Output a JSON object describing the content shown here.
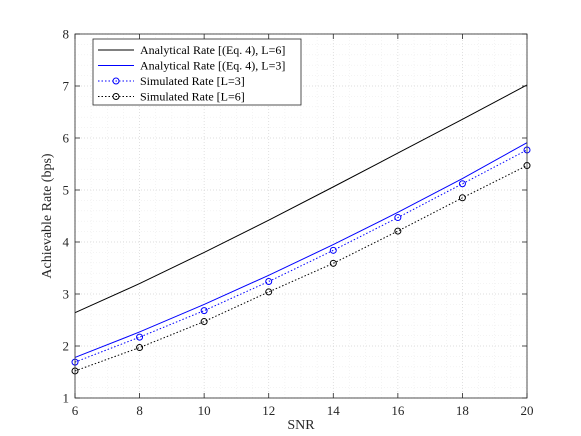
{
  "chart_data": {
    "type": "line",
    "xlabel": "SNR",
    "ylabel": "Achievable Rate (bps)",
    "xlim": [
      6,
      20
    ],
    "ylim": [
      1,
      8
    ],
    "xticks": [
      6,
      8,
      10,
      12,
      14,
      16,
      18,
      20
    ],
    "yticks": [
      1,
      2,
      3,
      4,
      5,
      6,
      7,
      8
    ],
    "grid": "major and minor, dotted",
    "legend_position": "top-left",
    "series": [
      {
        "name": "Analytical Rate [(Eq. 4), L=6]",
        "color": "#000000",
        "style": "solid",
        "marker": "none",
        "x": [
          6,
          8,
          10,
          12,
          14,
          16,
          18,
          20
        ],
        "y": [
          2.64,
          3.2,
          3.8,
          4.42,
          5.06,
          5.71,
          6.36,
          7.02
        ]
      },
      {
        "name": "Analytical Rate [(Eq. 4), L=3]",
        "color": "#0000ff",
        "style": "solid",
        "marker": "none",
        "x": [
          6,
          8,
          10,
          12,
          14,
          16,
          18,
          20
        ],
        "y": [
          1.78,
          2.27,
          2.8,
          3.36,
          3.95,
          4.57,
          5.22,
          5.91
        ]
      },
      {
        "name": "Simulated Rate [L=3]",
        "color": "#0000ff",
        "style": "dotted",
        "marker": "circle",
        "x": [
          6,
          8,
          10,
          12,
          14,
          16,
          18,
          20
        ],
        "y": [
          1.69,
          2.17,
          2.68,
          3.24,
          3.84,
          4.47,
          5.12,
          5.77
        ]
      },
      {
        "name": "Simulated Rate [L=6]",
        "color": "#000000",
        "style": "dotted",
        "marker": "circle",
        "x": [
          6,
          8,
          10,
          12,
          14,
          16,
          18,
          20
        ],
        "y": [
          1.52,
          1.97,
          2.47,
          3.04,
          3.59,
          4.21,
          4.85,
          5.47
        ]
      }
    ]
  }
}
